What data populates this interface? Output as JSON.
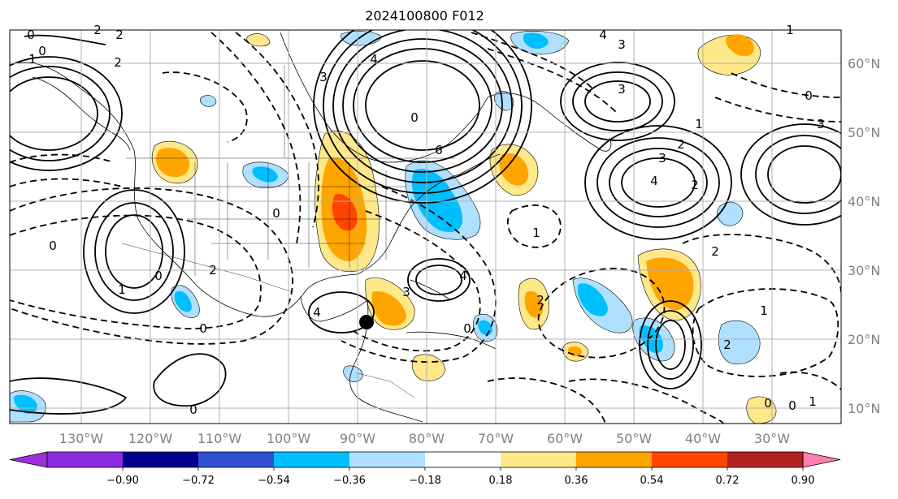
{
  "title": "2024100800 F012",
  "longitude_labels": [
    "130°W",
    "120°W",
    "110°W",
    "100°W",
    "90°W",
    "80°W",
    "70°W",
    "60°W",
    "50°W",
    "40°W",
    "30°W"
  ],
  "latitude_labels": [
    "60°N",
    "50°N",
    "40°N",
    "30°N",
    "20°N",
    "10°N"
  ],
  "colorbar": {
    "labels": [
      "−0.90",
      "−0.72",
      "−0.54",
      "−0.36",
      "−0.18",
      "0.18",
      "0.36",
      "0.54",
      "0.72",
      "0.90"
    ],
    "colors": {
      "under": "#9b30d9",
      "bins": [
        "#8a2be2",
        "#00008b",
        "#3050d0",
        "#00bfff",
        "#b0e0ff",
        "#ffffff",
        "#ffe88a",
        "#ffa500",
        "#ff4500",
        "#b22222"
      ],
      "over": "#ff7fb0"
    }
  },
  "contour_labels": [
    "0",
    "2",
    "2",
    "0",
    "1",
    "2",
    "3",
    "4",
    "0",
    "6",
    "4",
    "3",
    "1",
    "2",
    "3",
    "4",
    "2",
    "3",
    "0",
    "1",
    "0",
    "2",
    "0",
    "1",
    "0",
    "0",
    "1",
    "2",
    "3",
    "4",
    "1",
    "2",
    "0",
    "2",
    "4",
    "0",
    "0",
    "1",
    "0",
    "3"
  ],
  "marker": "storm-center-dot",
  "colors": {
    "grid": "#b0b0b0",
    "contour": "#000000",
    "tick_text": "#808080"
  }
}
